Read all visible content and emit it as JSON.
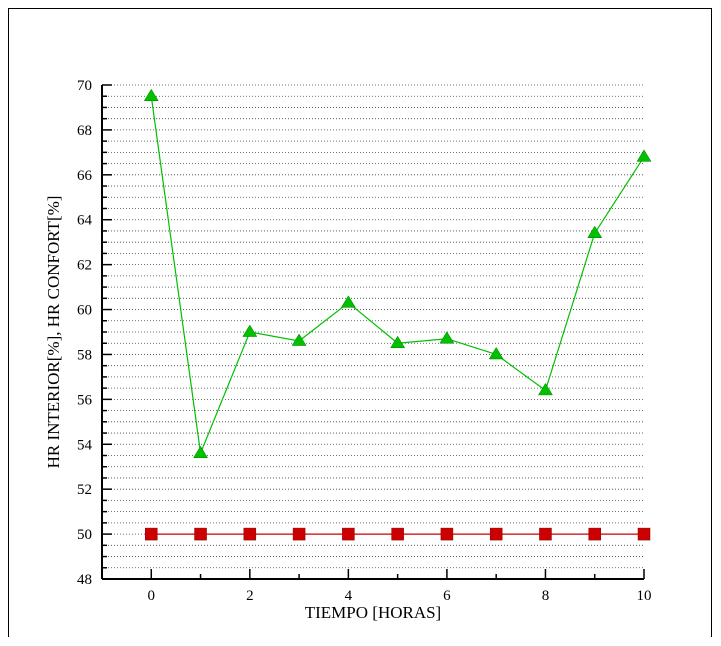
{
  "chart_data": {
    "type": "line",
    "xlabel": "TIEMPO [HORAS]",
    "ylabel": "HR INTERIOR[%], HR CONFORT[%]",
    "xlim": [
      -1,
      10
    ],
    "ylim": [
      48,
      70
    ],
    "xticks": [
      0,
      2,
      4,
      6,
      8,
      10
    ],
    "yticks": [
      48,
      50,
      52,
      54,
      56,
      58,
      60,
      62,
      64,
      66,
      68,
      70
    ],
    "grid": "horizontal dotted",
    "x": [
      0,
      1,
      2,
      3,
      4,
      5,
      6,
      7,
      8,
      9,
      10
    ],
    "series": [
      {
        "marker": "triangle",
        "color": "#00c000",
        "values": [
          69.5,
          53.6,
          59.0,
          58.6,
          60.3,
          58.5,
          58.7,
          58.0,
          56.4,
          63.4,
          66.8
        ]
      },
      {
        "marker": "square",
        "color": "#cc0000",
        "values": [
          50,
          50,
          50,
          50,
          50,
          50,
          50,
          50,
          50,
          50,
          50
        ]
      }
    ]
  }
}
